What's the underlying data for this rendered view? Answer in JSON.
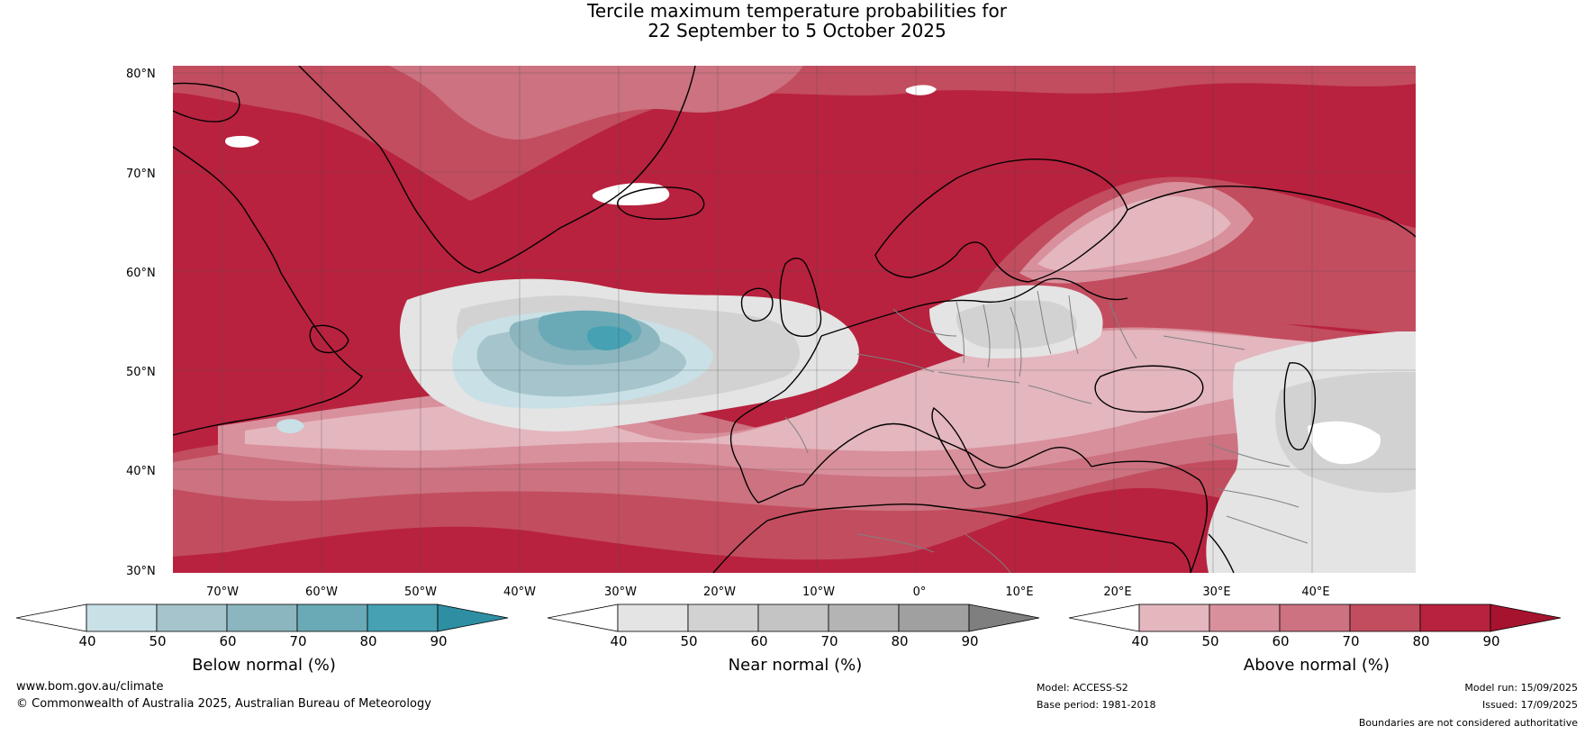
{
  "title": {
    "line1": "Tercile maximum temperature probabilities for",
    "line2": "22 September to 5 October 2025"
  },
  "map": {
    "lat_labels": [
      "80°N",
      "70°N",
      "60°N",
      "50°N",
      "40°N",
      "30°N"
    ],
    "lon_labels": [
      "70°W",
      "60°W",
      "50°W",
      "40°W",
      "30°W",
      "20°W",
      "10°W",
      "0°",
      "10°E",
      "20°E",
      "30°E",
      "40°E"
    ],
    "colors": {
      "above_40": "#e4b6be",
      "above_50": "#d8909c",
      "above_60": "#cc7280",
      "above_70": "#c24d5f",
      "above_80": "#b8223e",
      "near_40": "#e4e4e4",
      "near_50": "#d2d2d2",
      "near_60": "#c4c4c4",
      "below_40": "#c8e0e6",
      "below_50": "#a5c4cb",
      "below_60": "#8bb6bf",
      "below_70": "#6aaab6",
      "below_80": "#46a1b2",
      "coast": "#000000",
      "border": "#808080"
    }
  },
  "colorbars": {
    "below": {
      "label": "Below normal (%)",
      "ticks": [
        "40",
        "50",
        "60",
        "70",
        "80",
        "90"
      ],
      "colors": [
        "#ffffff",
        "#c8e0e6",
        "#a5c4cb",
        "#8bb6bf",
        "#6aaab6",
        "#46a1b2",
        "#2e8fa3"
      ]
    },
    "near": {
      "label": "Near normal (%)",
      "ticks": [
        "40",
        "50",
        "60",
        "70",
        "80",
        "90"
      ],
      "colors": [
        "#ffffff",
        "#e4e4e4",
        "#d2d2d2",
        "#c4c4c4",
        "#b4b4b4",
        "#a0a0a0",
        "#7f7f7f"
      ]
    },
    "above": {
      "label": "Above normal (%)",
      "ticks": [
        "40",
        "50",
        "60",
        "70",
        "80",
        "90"
      ],
      "colors": [
        "#ffffff",
        "#e4b6be",
        "#d8909c",
        "#cc7280",
        "#c24d5f",
        "#b8223e",
        "#a6132f"
      ]
    }
  },
  "footer": {
    "website": "www.bom.gov.au/climate",
    "copyright": "© Commonwealth of Australia 2025, Australian Bureau of Meteorology",
    "model": "Model: ACCESS-S2",
    "base_period": "Base period: 1981-2018",
    "model_run": "Model run: 15/09/2025",
    "issued": "Issued: 17/09/2025",
    "disclaimer": "Boundaries are not considered authoritative"
  }
}
